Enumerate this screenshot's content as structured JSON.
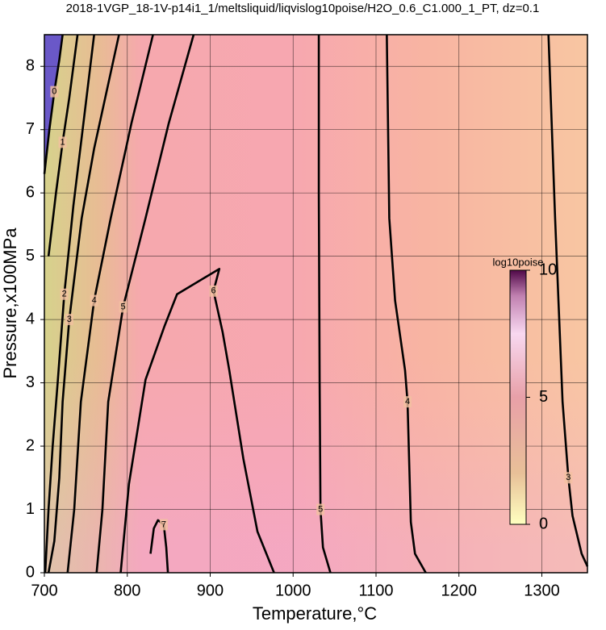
{
  "chart_data": {
    "type": "contour",
    "title": "2018-1VGP_18-1V-p14i1_1/meltsliquid/liqvislog10poise/H2O_0.6_C1.000_1_PT, dz=0.1",
    "xlabel": "Temperature,°C",
    "ylabel": "Pressure,x100MPa",
    "xlim": [
      700,
      1355
    ],
    "ylim": [
      0,
      8.5
    ],
    "xticks": [
      700,
      800,
      900,
      1000,
      1100,
      1200,
      1300
    ],
    "yticks": [
      0,
      1,
      2,
      3,
      4,
      5,
      6,
      7,
      8
    ],
    "grid": true,
    "colorbar": {
      "label": "log10poise",
      "lim": [
        0,
        10
      ],
      "ticks": [
        0,
        5,
        10
      ]
    },
    "contours": [
      {
        "level": 0,
        "x": [
          700,
          706,
          712,
          718,
          722
        ],
        "y": [
          6.3,
          7.0,
          7.6,
          8.1,
          8.5
        ]
      },
      {
        "level": 1,
        "x": [
          705,
          714,
          722,
          730,
          740
        ],
        "y": [
          5.0,
          6.0,
          6.8,
          7.5,
          8.5
        ]
      },
      {
        "level": 2,
        "x": [
          701,
          705,
          710,
          716,
          724,
          735,
          748,
          760
        ],
        "y": [
          0,
          1,
          2,
          3,
          4.4,
          5.8,
          7.2,
          8.5
        ]
      },
      {
        "level": 3,
        "x": [
          705,
          712,
          718,
          722,
          730,
          745,
          760,
          775,
          790
        ],
        "y": [
          0,
          0.5,
          1.5,
          2.7,
          4,
          5.6,
          6.7,
          7.6,
          8.5
        ]
      },
      {
        "level": 4,
        "x": [
          728,
          736,
          744,
          760,
          780,
          805,
          831
        ],
        "y": [
          0,
          1,
          2.7,
          4.3,
          5.6,
          7.1,
          8.5
        ]
      },
      {
        "level": 5,
        "x": [
          763,
          770,
          777,
          795,
          822,
          850,
          880
        ],
        "y": [
          0,
          1,
          2.7,
          4.2,
          5.6,
          7.1,
          8.5
        ]
      },
      {
        "level": 6,
        "x": [
          792,
          802,
          822,
          845,
          860,
          911,
          904,
          915,
          923,
          940,
          957,
          977
        ],
        "y": [
          0,
          1.4,
          3.05,
          3.9,
          4.4,
          4.8,
          4.45,
          3.8,
          3.2,
          1.8,
          0.65,
          0
        ]
      },
      {
        "level": 7,
        "x": [
          828,
          832,
          837,
          844,
          847,
          849
        ],
        "y": [
          0.3,
          0.7,
          0.83,
          0.76,
          0.4,
          0
        ]
      },
      {
        "level": 5,
        "x": [
          1031,
          1031,
          1032,
          1033,
          1036,
          1045
        ],
        "y": [
          8.5,
          6,
          3,
          1,
          0.4,
          0
        ]
      },
      {
        "level": 4,
        "x": [
          1113,
          1116,
          1123,
          1135,
          1138,
          1142,
          1147,
          1160
        ],
        "y": [
          8.5,
          5.6,
          4.3,
          3.2,
          2.7,
          0.8,
          0.3,
          0
        ]
      },
      {
        "level": 3,
        "x": [
          1308,
          1316,
          1325,
          1332,
          1337,
          1348,
          1355
        ],
        "y": [
          8.5,
          5.6,
          2.7,
          1.5,
          0.9,
          0.3,
          0.1
        ]
      }
    ]
  }
}
